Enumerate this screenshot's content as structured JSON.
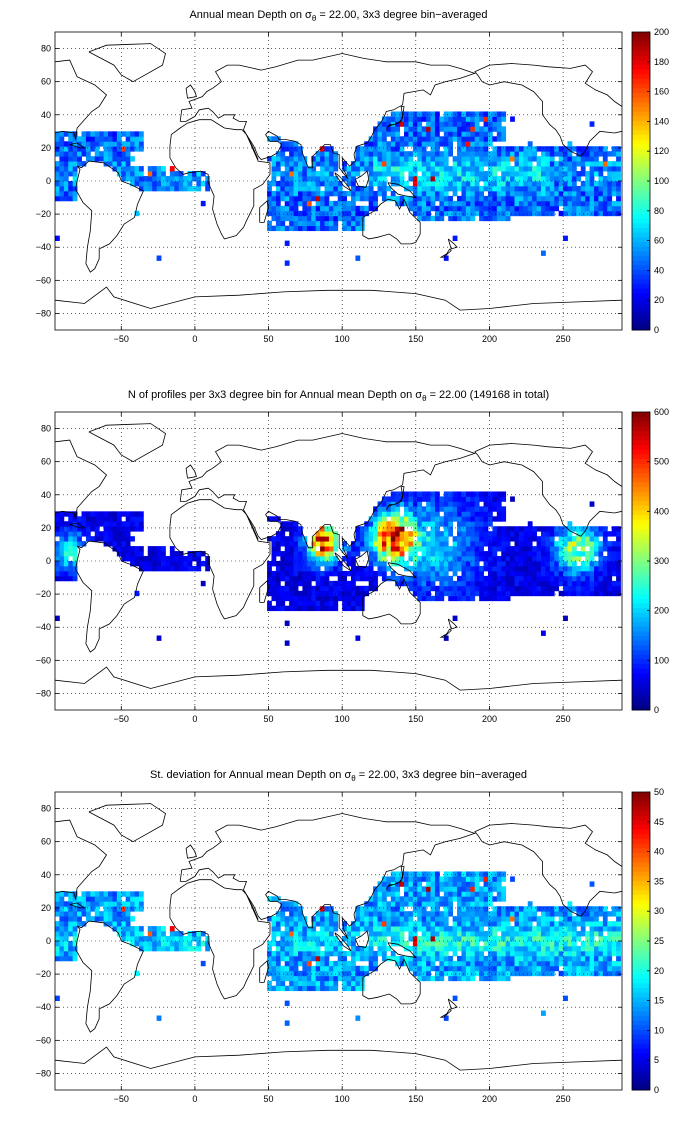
{
  "chart_data": [
    {
      "type": "heatmap",
      "title": {
        "pre": "Annual mean Depth on ",
        "sigma": "σ",
        "sub": "θ",
        "post": " = 22.00, 3x3 degree bin−averaged"
      },
      "xticks": [
        "−50",
        "0",
        "50",
        "100",
        "150",
        "200",
        "250"
      ],
      "xtick_values": [
        -50,
        0,
        50,
        100,
        150,
        200,
        250
      ],
      "yticks": [
        "80",
        "60",
        "40",
        "20",
        "0",
        "−20",
        "−40",
        "−60",
        "−80"
      ],
      "ytick_values": [
        80,
        60,
        40,
        20,
        0,
        -20,
        -40,
        -60,
        -80
      ],
      "xlim": [
        -95,
        290
      ],
      "ylim": [
        -90,
        90
      ],
      "colorbar": {
        "min": 0,
        "max": 200,
        "ticks": [
          "0",
          "20",
          "40",
          "60",
          "80",
          "100",
          "120",
          "140",
          "160",
          "180",
          "200"
        ],
        "tick_values": [
          0,
          20,
          40,
          60,
          80,
          100,
          120,
          140,
          160,
          180,
          200
        ]
      },
      "grid": true,
      "bin_size_deg": 3,
      "colormap": "jet",
      "field": "depth"
    },
    {
      "type": "heatmap",
      "title": {
        "pre": "N of profiles per 3x3 degree bin for Annual mean Depth on ",
        "sigma": "σ",
        "sub": "θ",
        "post": " = 22.00 (149168 in total)"
      },
      "xticks": [
        "−50",
        "0",
        "50",
        "100",
        "150",
        "200",
        "250"
      ],
      "xtick_values": [
        -50,
        0,
        50,
        100,
        150,
        200,
        250
      ],
      "yticks": [
        "80",
        "60",
        "40",
        "20",
        "0",
        "−20",
        "−40",
        "−60",
        "−80"
      ],
      "ytick_values": [
        80,
        60,
        40,
        20,
        0,
        -20,
        -40,
        -60,
        -80
      ],
      "xlim": [
        -95,
        290
      ],
      "ylim": [
        -90,
        90
      ],
      "colorbar": {
        "min": 0,
        "max": 600,
        "ticks": [
          "0",
          "100",
          "200",
          "300",
          "400",
          "500",
          "600"
        ],
        "tick_values": [
          0,
          100,
          200,
          300,
          400,
          500,
          600
        ]
      },
      "grid": true,
      "bin_size_deg": 3,
      "colormap": "jet",
      "field": "count",
      "total_profiles": 149168
    },
    {
      "type": "heatmap",
      "title": {
        "pre": "St. deviation for Annual mean Depth on ",
        "sigma": "σ",
        "sub": "θ",
        "post": " = 22.00, 3x3 degree bin−averaged"
      },
      "xticks": [
        "−50",
        "0",
        "50",
        "100",
        "150",
        "200",
        "250"
      ],
      "xtick_values": [
        -50,
        0,
        50,
        100,
        150,
        200,
        250
      ],
      "yticks": [
        "80",
        "60",
        "40",
        "20",
        "0",
        "−20",
        "−40",
        "−60",
        "−80"
      ],
      "ytick_values": [
        80,
        60,
        40,
        20,
        0,
        -20,
        -40,
        -60,
        -80
      ],
      "xlim": [
        -95,
        290
      ],
      "ylim": [
        -90,
        90
      ],
      "colorbar": {
        "min": 0,
        "max": 50,
        "ticks": [
          "0",
          "5",
          "10",
          "15",
          "20",
          "25",
          "30",
          "35",
          "40",
          "45",
          "50"
        ],
        "tick_values": [
          0,
          5,
          10,
          15,
          20,
          25,
          30,
          35,
          40,
          45,
          50
        ]
      },
      "grid": true,
      "bin_size_deg": 3,
      "colormap": "jet",
      "field": "std"
    }
  ]
}
